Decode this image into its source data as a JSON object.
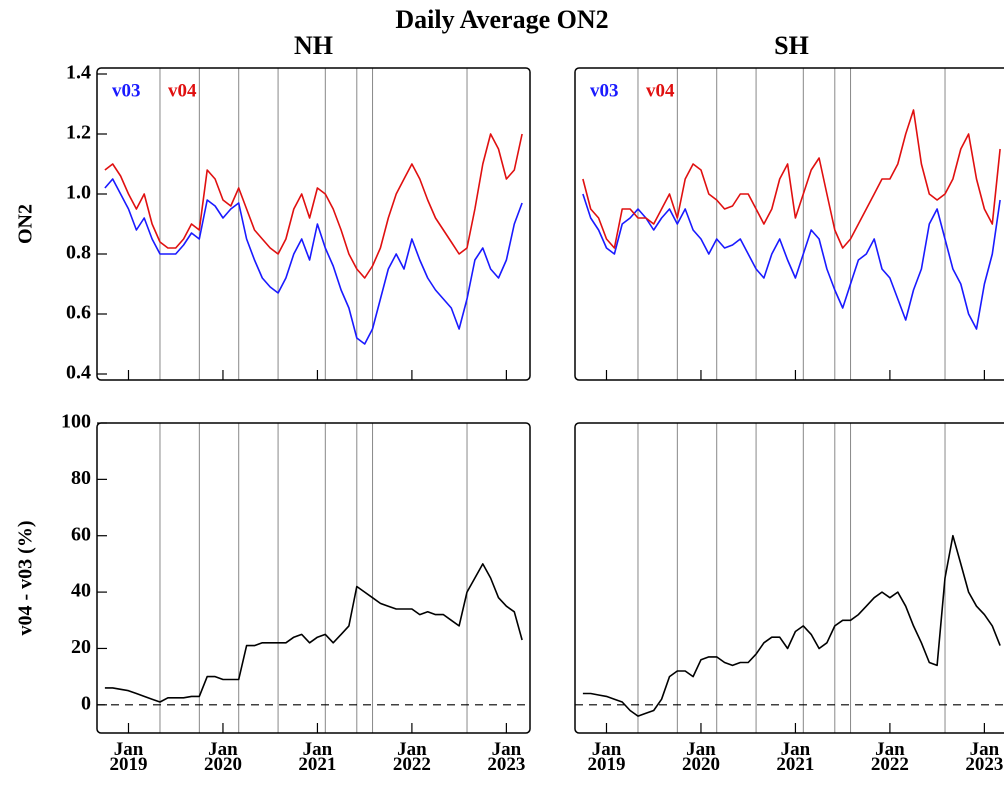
{
  "title": "Daily Average ON2",
  "chart_data": [
    {
      "type": "line",
      "title": "NH",
      "ylabel": "ON2",
      "xlim": [
        "2018-09",
        "2023-04"
      ],
      "ylim": [
        0.38,
        1.42
      ],
      "xticks": [
        "2019-01",
        "2020-01",
        "2021-01",
        "2022-01",
        "2023-01"
      ],
      "yticks": [
        0.4,
        0.6,
        0.8,
        {
          "value": 1,
          "label": "1.0"
        },
        1.2,
        1.4
      ],
      "vlines": [
        "2019-05",
        "2019-10",
        "2020-03",
        "2020-08",
        "2021-02",
        "2021-06",
        "2021-08",
        "2022-08"
      ],
      "x": [
        "2018-10",
        "2018-11",
        "2018-12",
        "2019-01",
        "2019-02",
        "2019-03",
        "2019-04",
        "2019-05",
        "2019-06",
        "2019-07",
        "2019-08",
        "2019-09",
        "2019-10",
        "2019-11",
        "2019-12",
        "2020-01",
        "2020-02",
        "2020-03",
        "2020-04",
        "2020-05",
        "2020-06",
        "2020-07",
        "2020-08",
        "2020-09",
        "2020-10",
        "2020-11",
        "2020-12",
        "2021-01",
        "2021-02",
        "2021-03",
        "2021-04",
        "2021-05",
        "2021-06",
        "2021-07",
        "2021-08",
        "2021-09",
        "2021-10",
        "2021-11",
        "2021-12",
        "2022-01",
        "2022-02",
        "2022-03",
        "2022-04",
        "2022-05",
        "2022-06",
        "2022-07",
        "2022-08",
        "2022-09",
        "2022-10",
        "2022-11",
        "2022-12",
        "2023-01",
        "2023-02",
        "2023-03"
      ],
      "series": [
        {
          "name": "v03",
          "color": "#1a1aff",
          "values": [
            1.02,
            1.05,
            1.0,
            0.95,
            0.88,
            0.92,
            0.85,
            0.8,
            0.8,
            0.8,
            0.83,
            0.87,
            0.85,
            0.98,
            0.96,
            0.92,
            0.95,
            0.97,
            0.85,
            0.78,
            0.72,
            0.69,
            0.67,
            0.72,
            0.8,
            0.85,
            0.78,
            0.9,
            0.82,
            0.76,
            0.68,
            0.62,
            0.52,
            0.5,
            0.55,
            0.65,
            0.75,
            0.8,
            0.75,
            0.85,
            0.78,
            0.72,
            0.68,
            0.65,
            0.62,
            0.55,
            0.65,
            0.78,
            0.82,
            0.75,
            0.72,
            0.78,
            0.9,
            0.97
          ]
        },
        {
          "name": "v04",
          "color": "#e01010",
          "values": [
            1.08,
            1.1,
            1.06,
            1.0,
            0.95,
            1.0,
            0.9,
            0.84,
            0.82,
            0.82,
            0.85,
            0.9,
            0.88,
            1.08,
            1.05,
            0.98,
            0.96,
            1.02,
            0.95,
            0.88,
            0.85,
            0.82,
            0.8,
            0.85,
            0.95,
            1.0,
            0.92,
            1.02,
            1.0,
            0.95,
            0.88,
            0.8,
            0.75,
            0.72,
            0.76,
            0.82,
            0.92,
            1.0,
            1.05,
            1.1,
            1.05,
            0.98,
            0.92,
            0.88,
            0.84,
            0.8,
            0.82,
            0.95,
            1.1,
            1.2,
            1.15,
            1.05,
            1.08,
            1.2
          ]
        }
      ]
    },
    {
      "type": "line",
      "ylabel": "v04 - v03 (%)",
      "xlim": [
        "2018-09",
        "2023-04"
      ],
      "ylim": [
        -10,
        100
      ],
      "xticks": [
        {
          "value": "2019-01",
          "label": "Jan 2019"
        },
        {
          "value": "2020-01",
          "label": "Jan 2020"
        },
        {
          "value": "2021-01",
          "label": "Jan 2021"
        },
        {
          "value": "2022-01",
          "label": "Jan 2022"
        },
        {
          "value": "2023-01",
          "label": "Jan 2023"
        }
      ],
      "yticks": [
        0,
        20,
        40,
        60,
        80,
        100
      ],
      "hline": 0,
      "vlines": [
        "2019-05",
        "2019-10",
        "2020-03",
        "2020-08",
        "2021-02",
        "2021-06",
        "2021-08",
        "2022-08"
      ],
      "x": [
        "2018-10",
        "2018-11",
        "2018-12",
        "2019-01",
        "2019-02",
        "2019-03",
        "2019-04",
        "2019-05",
        "2019-06",
        "2019-07",
        "2019-08",
        "2019-09",
        "2019-10",
        "2019-11",
        "2019-12",
        "2020-01",
        "2020-02",
        "2020-03",
        "2020-04",
        "2020-05",
        "2020-06",
        "2020-07",
        "2020-08",
        "2020-09",
        "2020-10",
        "2020-11",
        "2020-12",
        "2021-01",
        "2021-02",
        "2021-03",
        "2021-04",
        "2021-05",
        "2021-06",
        "2021-07",
        "2021-08",
        "2021-09",
        "2021-10",
        "2021-11",
        "2021-12",
        "2022-01",
        "2022-02",
        "2022-03",
        "2022-04",
        "2022-05",
        "2022-06",
        "2022-07",
        "2022-08",
        "2022-09",
        "2022-10",
        "2022-11",
        "2022-12",
        "2023-01",
        "2023-02",
        "2023-03"
      ],
      "series": [
        {
          "color": "#000000",
          "values": [
            6,
            6,
            5.5,
            5,
            4,
            3,
            2,
            1,
            2.5,
            2.5,
            2.5,
            3,
            3,
            10,
            10,
            9,
            9,
            9,
            21,
            21,
            22,
            22,
            22,
            22,
            24,
            25,
            22,
            24,
            25,
            22,
            25,
            28,
            42,
            40,
            38,
            36,
            35,
            34,
            34,
            34,
            32,
            33,
            32,
            32,
            30,
            28,
            40,
            45,
            50,
            45,
            38,
            35,
            33,
            23
          ]
        }
      ]
    },
    {
      "type": "line",
      "title": "SH",
      "xlim": [
        "2018-09",
        "2023-04"
      ],
      "ylim": [
        0.38,
        1.42
      ],
      "xticks": [
        "2019-01",
        "2020-01",
        "2021-01",
        "2022-01",
        "2023-01"
      ],
      "vlines": [
        "2019-05",
        "2019-10",
        "2020-03",
        "2020-08",
        "2021-02",
        "2021-06",
        "2021-08",
        "2022-08"
      ],
      "x": [
        "2018-10",
        "2018-11",
        "2018-12",
        "2019-01",
        "2019-02",
        "2019-03",
        "2019-04",
        "2019-05",
        "2019-06",
        "2019-07",
        "2019-08",
        "2019-09",
        "2019-10",
        "2019-11",
        "2019-12",
        "2020-01",
        "2020-02",
        "2020-03",
        "2020-04",
        "2020-05",
        "2020-06",
        "2020-07",
        "2020-08",
        "2020-09",
        "2020-10",
        "2020-11",
        "2020-12",
        "2021-01",
        "2021-02",
        "2021-03",
        "2021-04",
        "2021-05",
        "2021-06",
        "2021-07",
        "2021-08",
        "2021-09",
        "2021-10",
        "2021-11",
        "2021-12",
        "2022-01",
        "2022-02",
        "2022-03",
        "2022-04",
        "2022-05",
        "2022-06",
        "2022-07",
        "2022-08",
        "2022-09",
        "2022-10",
        "2022-11",
        "2022-12",
        "2023-01",
        "2023-02",
        "2023-03"
      ],
      "series": [
        {
          "name": "v03",
          "color": "#1a1aff",
          "values": [
            1.0,
            0.92,
            0.88,
            0.82,
            0.8,
            0.9,
            0.92,
            0.95,
            0.92,
            0.88,
            0.92,
            0.95,
            0.9,
            0.95,
            0.88,
            0.85,
            0.8,
            0.85,
            0.82,
            0.83,
            0.85,
            0.8,
            0.75,
            0.72,
            0.8,
            0.85,
            0.78,
            0.72,
            0.8,
            0.88,
            0.85,
            0.75,
            0.68,
            0.62,
            0.7,
            0.78,
            0.8,
            0.85,
            0.75,
            0.72,
            0.65,
            0.58,
            0.68,
            0.75,
            0.9,
            0.95,
            0.85,
            0.75,
            0.7,
            0.6,
            0.55,
            0.7,
            0.8,
            0.98
          ]
        },
        {
          "name": "v04",
          "color": "#e01010",
          "values": [
            1.05,
            0.95,
            0.92,
            0.85,
            0.82,
            0.95,
            0.95,
            0.92,
            0.92,
            0.9,
            0.95,
            1.0,
            0.92,
            1.05,
            1.1,
            1.08,
            1.0,
            0.98,
            0.95,
            0.96,
            1.0,
            1.0,
            0.95,
            0.9,
            0.95,
            1.05,
            1.1,
            0.92,
            1.0,
            1.08,
            1.12,
            1.0,
            0.88,
            0.82,
            0.85,
            0.9,
            0.95,
            1.0,
            1.05,
            1.05,
            1.1,
            1.2,
            1.28,
            1.1,
            1.0,
            0.98,
            1.0,
            1.05,
            1.15,
            1.2,
            1.05,
            0.95,
            0.9,
            1.15
          ]
        }
      ]
    },
    {
      "type": "line",
      "xlim": [
        "2018-09",
        "2023-04"
      ],
      "ylim": [
        -10,
        100
      ],
      "xticks": [
        {
          "value": "2019-01",
          "label": "Jan 2019"
        },
        {
          "value": "2020-01",
          "label": "Jan 2020"
        },
        {
          "value": "2021-01",
          "label": "Jan 2021"
        },
        {
          "value": "2022-01",
          "label": "Jan 2022"
        },
        {
          "value": "2023-01",
          "label": "Jan 2023"
        }
      ],
      "hline": 0,
      "vlines": [
        "2019-05",
        "2019-10",
        "2020-03",
        "2020-08",
        "2021-02",
        "2021-06",
        "2021-08",
        "2022-08"
      ],
      "x": [
        "2018-10",
        "2018-11",
        "2018-12",
        "2019-01",
        "2019-02",
        "2019-03",
        "2019-04",
        "2019-05",
        "2019-06",
        "2019-07",
        "2019-08",
        "2019-09",
        "2019-10",
        "2019-11",
        "2019-12",
        "2020-01",
        "2020-02",
        "2020-03",
        "2020-04",
        "2020-05",
        "2020-06",
        "2020-07",
        "2020-08",
        "2020-09",
        "2020-10",
        "2020-11",
        "2020-12",
        "2021-01",
        "2021-02",
        "2021-03",
        "2021-04",
        "2021-05",
        "2021-06",
        "2021-07",
        "2021-08",
        "2021-09",
        "2021-10",
        "2021-11",
        "2021-12",
        "2022-01",
        "2022-02",
        "2022-03",
        "2022-04",
        "2022-05",
        "2022-06",
        "2022-07",
        "2022-08",
        "2022-09",
        "2022-10",
        "2022-11",
        "2022-12",
        "2023-01",
        "2023-02",
        "2023-03"
      ],
      "series": [
        {
          "color": "#000000",
          "values": [
            4,
            4,
            3.5,
            3,
            2,
            1,
            -2,
            -4,
            -3,
            -2,
            2,
            10,
            12,
            12,
            10,
            16,
            17,
            17,
            15,
            14,
            15,
            15,
            18,
            22,
            24,
            24,
            20,
            26,
            28,
            25,
            20,
            22,
            28,
            30,
            30,
            32,
            35,
            38,
            40,
            38,
            40,
            35,
            28,
            22,
            15,
            14,
            45,
            60,
            50,
            40,
            35,
            32,
            28,
            21
          ]
        }
      ]
    }
  ]
}
